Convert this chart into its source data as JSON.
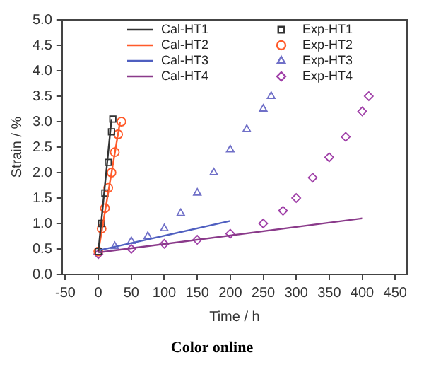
{
  "chart_data": {
    "type": "line",
    "xlabel": "Time / h",
    "ylabel": "Strain / %",
    "annotations": [
      "Color online"
    ],
    "xlim": [
      -55,
      468
    ],
    "xticks": [
      -50,
      0,
      50,
      100,
      150,
      200,
      250,
      300,
      350,
      400,
      450
    ],
    "ylim": [
      0,
      5
    ],
    "yticks": [
      {
        "value": 0,
        "label": "0.0"
      },
      0.5,
      {
        "value": 1,
        "label": "1.0"
      },
      1.5,
      {
        "value": 2,
        "label": "2.0"
      },
      2.5,
      {
        "value": 3,
        "label": "3.0"
      },
      3.5,
      {
        "value": 4,
        "label": "4.0"
      },
      4.5,
      {
        "value": 5,
        "label": "5.0"
      }
    ],
    "grid": false,
    "legend": "top right",
    "line_style": "solid",
    "series": [
      {
        "name": "Cal-HT1",
        "marker": "none",
        "color": "#333333",
        "x": [
          0,
          20
        ],
        "values": [
          0.45,
          3.05
        ]
      },
      {
        "name": "Cal-HT2",
        "marker": "none",
        "color": "#ff5a2a",
        "x": [
          0,
          33
        ],
        "values": [
          0.45,
          3.0
        ]
      },
      {
        "name": "Cal-HT3",
        "marker": "none",
        "color": "#4f5fc0",
        "x": [
          0,
          200
        ],
        "values": [
          0.47,
          1.05
        ]
      },
      {
        "name": "Cal-HT4",
        "marker": "none",
        "color": "#8a3a8a",
        "x": [
          0,
          400
        ],
        "values": [
          0.43,
          1.1
        ]
      },
      {
        "name": "Exp-HT1",
        "type": "scatter",
        "marker": "square",
        "color": "#333333",
        "x": [
          0,
          5,
          10,
          15,
          20,
          22
        ],
        "values": [
          0.45,
          1.0,
          1.6,
          2.2,
          2.8,
          3.05
        ]
      },
      {
        "name": "Exp-HT2",
        "type": "scatter",
        "marker": "circle",
        "color": "#ff5a2a",
        "x": [
          0,
          5,
          10,
          15,
          20,
          25,
          30,
          35
        ],
        "values": [
          0.45,
          0.9,
          1.3,
          1.7,
          2.0,
          2.4,
          2.75,
          3.0
        ]
      },
      {
        "name": "Exp-HT3",
        "type": "scatter",
        "marker": "triangle",
        "color": "#7070c8",
        "x": [
          25,
          50,
          75,
          100,
          125,
          150,
          175,
          200,
          225,
          250,
          262
        ],
        "values": [
          0.55,
          0.65,
          0.75,
          0.9,
          1.2,
          1.6,
          2.0,
          2.45,
          2.85,
          3.25,
          3.5
        ]
      },
      {
        "name": "Exp-HT4",
        "type": "scatter",
        "marker": "diamond",
        "color": "#a040a8",
        "x": [
          0,
          50,
          100,
          150,
          200,
          250,
          280,
          300,
          325,
          350,
          375,
          400,
          410
        ],
        "values": [
          0.4,
          0.5,
          0.6,
          0.68,
          0.8,
          1.0,
          1.25,
          1.5,
          1.9,
          2.3,
          2.7,
          3.2,
          3.5
        ]
      }
    ]
  }
}
